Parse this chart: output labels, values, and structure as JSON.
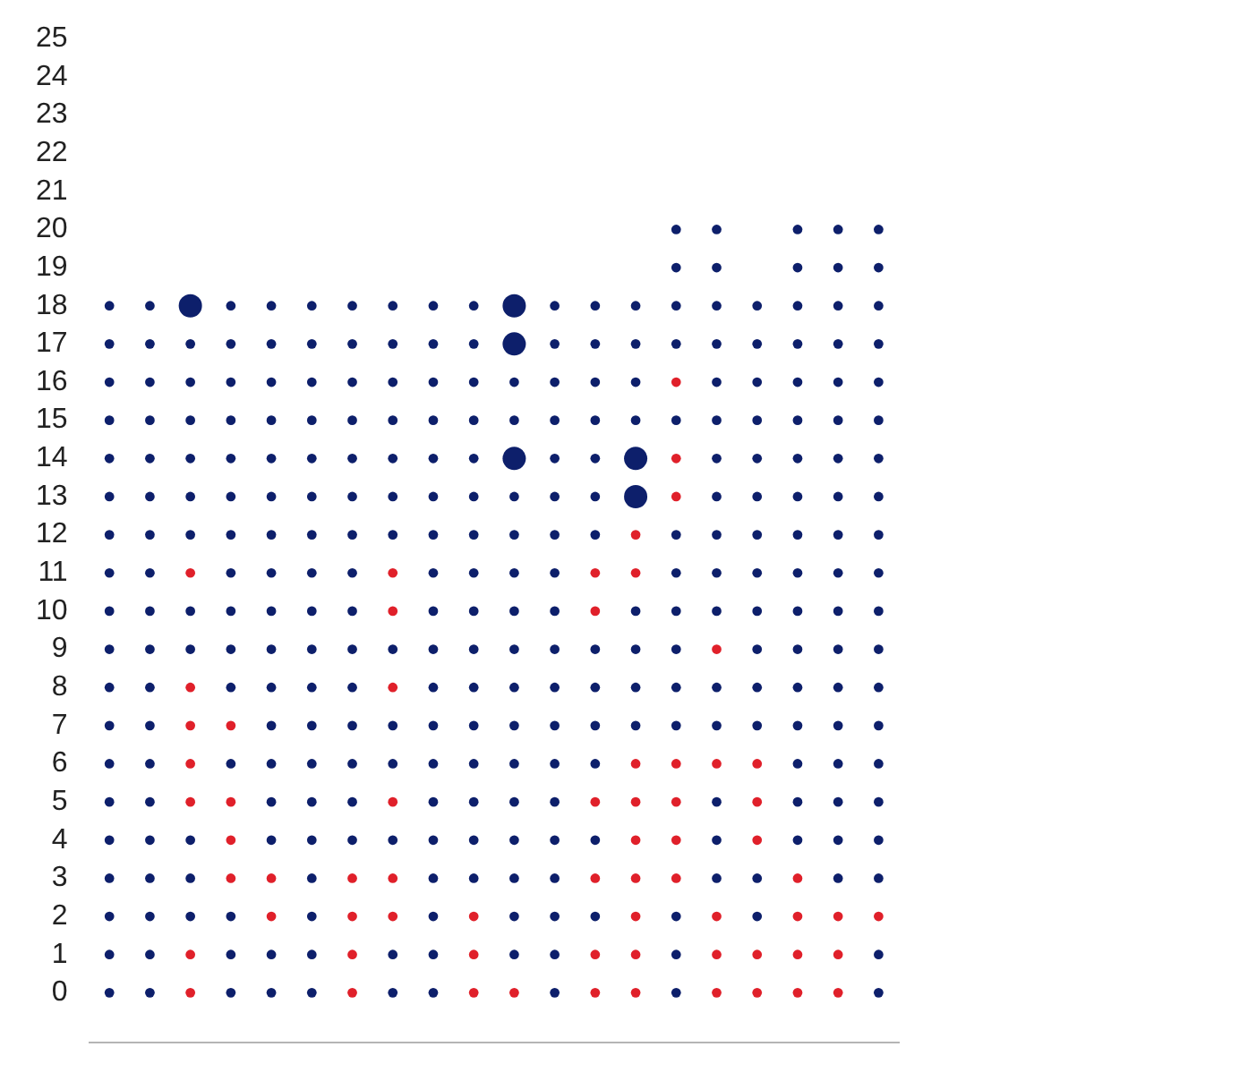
{
  "chart_data": {
    "type": "bubble",
    "categories": [
      null,
      null,
      null,
      null,
      null,
      null,
      null,
      null,
      null,
      null,
      null,
      null,
      null,
      null,
      null,
      null,
      null,
      null,
      null,
      null
    ],
    "ylim": [
      -1.3,
      25
    ],
    "yticks": [
      0,
      1,
      2,
      3,
      4,
      5,
      6,
      7,
      8,
      9,
      10,
      11,
      12,
      13,
      14,
      15,
      16,
      17,
      18,
      19,
      20,
      21,
      22,
      23,
      24,
      25
    ],
    "tick_labels": "y",
    "grid": false,
    "legend": false,
    "series": [
      {
        "values": [
          0,
          0,
          0,
          0,
          0,
          0,
          0,
          0,
          0,
          0,
          0,
          0,
          0,
          0,
          0,
          0,
          0,
          0,
          0,
          0
        ],
        "colors": [
          "#0d1f6b",
          "#0d1f6b",
          "#e0202a",
          "#0d1f6b",
          "#0d1f6b",
          "#0d1f6b",
          "#e0202a",
          "#0d1f6b",
          "#0d1f6b",
          "#e0202a",
          "#e0202a",
          "#0d1f6b",
          "#e0202a",
          "#e0202a",
          "#0d1f6b",
          "#e0202a",
          "#e0202a",
          "#e0202a",
          "#e0202a",
          "#0d1f6b"
        ],
        "sizes": [
          0.17,
          0.17,
          0.17,
          0.17,
          0.17,
          0.17,
          0.17,
          0.17,
          0.17,
          0.17,
          0.17,
          0.17,
          0.17,
          0.17,
          0.17,
          0.17,
          0.17,
          0.17,
          0.17,
          0.17
        ]
      },
      {
        "values": [
          1,
          1,
          1,
          1,
          1,
          1,
          1,
          1,
          1,
          1,
          1,
          1,
          1,
          1,
          1,
          1,
          1,
          1,
          1,
          1
        ],
        "colors": [
          "#0d1f6b",
          "#0d1f6b",
          "#e0202a",
          "#0d1f6b",
          "#0d1f6b",
          "#0d1f6b",
          "#e0202a",
          "#0d1f6b",
          "#0d1f6b",
          "#e0202a",
          "#0d1f6b",
          "#0d1f6b",
          "#e0202a",
          "#e0202a",
          "#0d1f6b",
          "#e0202a",
          "#e0202a",
          "#e0202a",
          "#e0202a",
          "#0d1f6b"
        ],
        "sizes": [
          0.17,
          0.17,
          0.17,
          0.17,
          0.17,
          0.17,
          0.17,
          0.17,
          0.17,
          0.17,
          0.17,
          0.17,
          0.17,
          0.17,
          0.17,
          0.17,
          0.17,
          0.17,
          0.17,
          0.17
        ]
      },
      {
        "values": [
          2,
          2,
          2,
          2,
          2,
          2,
          2,
          2,
          2,
          2,
          2,
          2,
          2,
          2,
          2,
          2,
          2,
          2,
          2,
          2
        ],
        "colors": [
          "#0d1f6b",
          "#0d1f6b",
          "#0d1f6b",
          "#0d1f6b",
          "#e0202a",
          "#0d1f6b",
          "#e0202a",
          "#e0202a",
          "#0d1f6b",
          "#e0202a",
          "#0d1f6b",
          "#0d1f6b",
          "#0d1f6b",
          "#e0202a",
          "#0d1f6b",
          "#e0202a",
          "#0d1f6b",
          "#e0202a",
          "#e0202a",
          "#e0202a"
        ],
        "sizes": [
          0.17,
          0.17,
          0.17,
          0.17,
          0.17,
          0.17,
          0.17,
          0.17,
          0.17,
          0.17,
          0.17,
          0.17,
          0.17,
          0.17,
          0.17,
          0.17,
          0.17,
          0.17,
          0.17,
          0.17
        ]
      },
      {
        "values": [
          3,
          3,
          3,
          3,
          3,
          3,
          3,
          3,
          3,
          3,
          3,
          3,
          3,
          3,
          3,
          3,
          3,
          3,
          3,
          3
        ],
        "colors": [
          "#0d1f6b",
          "#0d1f6b",
          "#0d1f6b",
          "#e0202a",
          "#e0202a",
          "#0d1f6b",
          "#e0202a",
          "#e0202a",
          "#0d1f6b",
          "#0d1f6b",
          "#0d1f6b",
          "#0d1f6b",
          "#e0202a",
          "#e0202a",
          "#e0202a",
          "#0d1f6b",
          "#0d1f6b",
          "#e0202a",
          "#0d1f6b",
          "#0d1f6b"
        ],
        "sizes": [
          0.17,
          0.17,
          0.17,
          0.17,
          0.17,
          0.17,
          0.17,
          0.17,
          0.17,
          0.17,
          0.17,
          0.17,
          0.17,
          0.17,
          0.17,
          0.17,
          0.17,
          0.17,
          0.17,
          0.17
        ]
      },
      {
        "values": [
          4,
          4,
          4,
          4,
          4,
          4,
          4,
          4,
          4,
          4,
          4,
          4,
          4,
          4,
          4,
          4,
          4,
          4,
          4,
          4
        ],
        "colors": [
          "#0d1f6b",
          "#0d1f6b",
          "#0d1f6b",
          "#e0202a",
          "#0d1f6b",
          "#0d1f6b",
          "#0d1f6b",
          "#0d1f6b",
          "#0d1f6b",
          "#0d1f6b",
          "#0d1f6b",
          "#0d1f6b",
          "#0d1f6b",
          "#e0202a",
          "#e0202a",
          "#0d1f6b",
          "#e0202a",
          "#0d1f6b",
          "#0d1f6b",
          "#0d1f6b"
        ],
        "sizes": [
          0.17,
          0.17,
          0.17,
          0.17,
          0.17,
          0.17,
          0.17,
          0.17,
          0.17,
          0.17,
          0.17,
          0.17,
          0.17,
          0.17,
          0.17,
          0.17,
          0.17,
          0.17,
          0.17,
          0.17
        ]
      },
      {
        "values": [
          5,
          5,
          5,
          5,
          5,
          5,
          5,
          5,
          5,
          5,
          5,
          5,
          5,
          5,
          5,
          5,
          5,
          5,
          5,
          5
        ],
        "colors": [
          "#0d1f6b",
          "#0d1f6b",
          "#e0202a",
          "#e0202a",
          "#0d1f6b",
          "#0d1f6b",
          "#0d1f6b",
          "#e0202a",
          "#0d1f6b",
          "#0d1f6b",
          "#0d1f6b",
          "#0d1f6b",
          "#e0202a",
          "#e0202a",
          "#e0202a",
          "#0d1f6b",
          "#e0202a",
          "#0d1f6b",
          "#0d1f6b",
          "#0d1f6b"
        ],
        "sizes": [
          0.17,
          0.17,
          0.17,
          0.17,
          0.17,
          0.17,
          0.17,
          0.17,
          0.17,
          0.17,
          0.17,
          0.17,
          0.17,
          0.17,
          0.17,
          0.17,
          0.17,
          0.17,
          0.17,
          0.17
        ]
      },
      {
        "values": [
          6,
          6,
          6,
          6,
          6,
          6,
          6,
          6,
          6,
          6,
          6,
          6,
          6,
          6,
          6,
          6,
          6,
          6,
          6,
          6
        ],
        "colors": [
          "#0d1f6b",
          "#0d1f6b",
          "#e0202a",
          "#0d1f6b",
          "#0d1f6b",
          "#0d1f6b",
          "#0d1f6b",
          "#0d1f6b",
          "#0d1f6b",
          "#0d1f6b",
          "#0d1f6b",
          "#0d1f6b",
          "#0d1f6b",
          "#e0202a",
          "#e0202a",
          "#e0202a",
          "#e0202a",
          "#0d1f6b",
          "#0d1f6b",
          "#0d1f6b"
        ],
        "sizes": [
          0.17,
          0.17,
          0.17,
          0.17,
          0.17,
          0.17,
          0.17,
          0.17,
          0.17,
          0.17,
          0.17,
          0.17,
          0.17,
          0.17,
          0.17,
          0.17,
          0.17,
          0.17,
          0.17,
          0.17
        ]
      },
      {
        "values": [
          7,
          7,
          7,
          7,
          7,
          7,
          7,
          7,
          7,
          7,
          7,
          7,
          7,
          7,
          7,
          7,
          7,
          7,
          7,
          7
        ],
        "colors": [
          "#0d1f6b",
          "#0d1f6b",
          "#e0202a",
          "#e0202a",
          "#0d1f6b",
          "#0d1f6b",
          "#0d1f6b",
          "#0d1f6b",
          "#0d1f6b",
          "#0d1f6b",
          "#0d1f6b",
          "#0d1f6b",
          "#0d1f6b",
          "#0d1f6b",
          "#0d1f6b",
          "#0d1f6b",
          "#0d1f6b",
          "#0d1f6b",
          "#0d1f6b",
          "#0d1f6b"
        ],
        "sizes": [
          0.17,
          0.17,
          0.17,
          0.17,
          0.17,
          0.17,
          0.17,
          0.17,
          0.17,
          0.17,
          0.17,
          0.17,
          0.17,
          0.17,
          0.17,
          0.17,
          0.17,
          0.17,
          0.17,
          0.17
        ]
      },
      {
        "values": [
          8,
          8,
          8,
          8,
          8,
          8,
          8,
          8,
          8,
          8,
          8,
          8,
          8,
          8,
          8,
          8,
          8,
          8,
          8,
          8
        ],
        "colors": [
          "#0d1f6b",
          "#0d1f6b",
          "#e0202a",
          "#0d1f6b",
          "#0d1f6b",
          "#0d1f6b",
          "#0d1f6b",
          "#e0202a",
          "#0d1f6b",
          "#0d1f6b",
          "#0d1f6b",
          "#0d1f6b",
          "#0d1f6b",
          "#0d1f6b",
          "#0d1f6b",
          "#0d1f6b",
          "#0d1f6b",
          "#0d1f6b",
          "#0d1f6b",
          "#0d1f6b"
        ],
        "sizes": [
          0.17,
          0.17,
          0.17,
          0.17,
          0.17,
          0.17,
          0.17,
          0.17,
          0.17,
          0.17,
          0.17,
          0.17,
          0.17,
          0.17,
          0.17,
          0.17,
          0.17,
          0.17,
          0.17,
          0.17
        ]
      },
      {
        "values": [
          9,
          9,
          9,
          9,
          9,
          9,
          9,
          9,
          9,
          9,
          9,
          9,
          9,
          9,
          9,
          9,
          9,
          9,
          9,
          9
        ],
        "colors": [
          "#0d1f6b",
          "#0d1f6b",
          "#0d1f6b",
          "#0d1f6b",
          "#0d1f6b",
          "#0d1f6b",
          "#0d1f6b",
          "#0d1f6b",
          "#0d1f6b",
          "#0d1f6b",
          "#0d1f6b",
          "#0d1f6b",
          "#0d1f6b",
          "#0d1f6b",
          "#0d1f6b",
          "#e0202a",
          "#0d1f6b",
          "#0d1f6b",
          "#0d1f6b",
          "#0d1f6b"
        ],
        "sizes": [
          0.17,
          0.17,
          0.17,
          0.17,
          0.17,
          0.17,
          0.17,
          0.17,
          0.17,
          0.17,
          0.17,
          0.17,
          0.17,
          0.17,
          0.17,
          0.17,
          0.17,
          0.17,
          0.17,
          0.17
        ]
      },
      {
        "values": [
          10,
          10,
          10,
          10,
          10,
          10,
          10,
          10,
          10,
          10,
          10,
          10,
          10,
          10,
          10,
          10,
          10,
          10,
          10,
          10
        ],
        "colors": [
          "#0d1f6b",
          "#0d1f6b",
          "#0d1f6b",
          "#0d1f6b",
          "#0d1f6b",
          "#0d1f6b",
          "#0d1f6b",
          "#e0202a",
          "#0d1f6b",
          "#0d1f6b",
          "#0d1f6b",
          "#0d1f6b",
          "#e0202a",
          "#0d1f6b",
          "#0d1f6b",
          "#0d1f6b",
          "#0d1f6b",
          "#0d1f6b",
          "#0d1f6b",
          "#0d1f6b"
        ],
        "sizes": [
          0.17,
          0.17,
          0.17,
          0.17,
          0.17,
          0.17,
          0.17,
          0.17,
          0.17,
          0.17,
          0.17,
          0.17,
          0.17,
          0.17,
          0.17,
          0.17,
          0.17,
          0.17,
          0.17,
          0.17
        ]
      },
      {
        "values": [
          11,
          11,
          11,
          11,
          11,
          11,
          11,
          11,
          11,
          11,
          11,
          11,
          11,
          11,
          11,
          11,
          11,
          11,
          11,
          11
        ],
        "colors": [
          "#0d1f6b",
          "#0d1f6b",
          "#e0202a",
          "#0d1f6b",
          "#0d1f6b",
          "#0d1f6b",
          "#0d1f6b",
          "#e0202a",
          "#0d1f6b",
          "#0d1f6b",
          "#0d1f6b",
          "#0d1f6b",
          "#e0202a",
          "#e0202a",
          "#0d1f6b",
          "#0d1f6b",
          "#0d1f6b",
          "#0d1f6b",
          "#0d1f6b",
          "#0d1f6b"
        ],
        "sizes": [
          0.17,
          0.17,
          0.17,
          0.17,
          0.17,
          0.17,
          0.17,
          0.17,
          0.17,
          0.17,
          0.17,
          0.17,
          0.17,
          0.17,
          0.17,
          0.17,
          0.17,
          0.17,
          0.17,
          0.17
        ]
      },
      {
        "values": [
          12,
          12,
          12,
          12,
          12,
          12,
          12,
          12,
          12,
          12,
          12,
          12,
          12,
          12,
          12,
          12,
          12,
          12,
          12,
          12
        ],
        "colors": [
          "#0d1f6b",
          "#0d1f6b",
          "#0d1f6b",
          "#0d1f6b",
          "#0d1f6b",
          "#0d1f6b",
          "#0d1f6b",
          "#0d1f6b",
          "#0d1f6b",
          "#0d1f6b",
          "#0d1f6b",
          "#0d1f6b",
          "#0d1f6b",
          "#e0202a",
          "#0d1f6b",
          "#0d1f6b",
          "#0d1f6b",
          "#0d1f6b",
          "#0d1f6b",
          "#0d1f6b"
        ],
        "sizes": [
          0.17,
          0.17,
          0.17,
          0.17,
          0.17,
          0.17,
          0.17,
          0.17,
          0.17,
          0.17,
          0.17,
          0.17,
          0.17,
          0.17,
          0.17,
          0.17,
          0.17,
          0.17,
          0.17,
          0.17
        ]
      },
      {
        "values": [
          13,
          13,
          13,
          13,
          13,
          13,
          13,
          13,
          13,
          13,
          13,
          13,
          13,
          13,
          13,
          13,
          13,
          13,
          13,
          13
        ],
        "colors": [
          "#0d1f6b",
          "#0d1f6b",
          "#0d1f6b",
          "#0d1f6b",
          "#0d1f6b",
          "#0d1f6b",
          "#0d1f6b",
          "#0d1f6b",
          "#0d1f6b",
          "#0d1f6b",
          "#0d1f6b",
          "#0d1f6b",
          "#0d1f6b",
          "#0d1f6b",
          "#e0202a",
          "#0d1f6b",
          "#0d1f6b",
          "#0d1f6b",
          "#0d1f6b",
          "#0d1f6b"
        ],
        "sizes": [
          0.17,
          0.17,
          0.17,
          0.17,
          0.17,
          0.17,
          0.17,
          0.17,
          0.17,
          0.17,
          0.17,
          0.17,
          0.17,
          1,
          0.17,
          0.17,
          0.17,
          0.17,
          0.17,
          0.17
        ]
      },
      {
        "values": [
          14,
          14,
          14,
          14,
          14,
          14,
          14,
          14,
          14,
          14,
          14,
          14,
          14,
          14,
          14,
          14,
          14,
          14,
          14,
          14
        ],
        "colors": [
          "#0d1f6b",
          "#0d1f6b",
          "#0d1f6b",
          "#0d1f6b",
          "#0d1f6b",
          "#0d1f6b",
          "#0d1f6b",
          "#0d1f6b",
          "#0d1f6b",
          "#0d1f6b",
          "#0d1f6b",
          "#0d1f6b",
          "#0d1f6b",
          "#0d1f6b",
          "#e0202a",
          "#0d1f6b",
          "#0d1f6b",
          "#0d1f6b",
          "#0d1f6b",
          "#0d1f6b"
        ],
        "sizes": [
          0.17,
          0.17,
          0.17,
          0.17,
          0.17,
          0.17,
          0.17,
          0.17,
          0.17,
          0.17,
          1,
          0.17,
          0.17,
          1,
          0.17,
          0.17,
          0.17,
          0.17,
          0.17,
          0.17
        ]
      },
      {
        "values": [
          15,
          15,
          15,
          15,
          15,
          15,
          15,
          15,
          15,
          15,
          15,
          15,
          15,
          15,
          15,
          15,
          15,
          15,
          15,
          15
        ],
        "colors": [
          "#0d1f6b",
          "#0d1f6b",
          "#0d1f6b",
          "#0d1f6b",
          "#0d1f6b",
          "#0d1f6b",
          "#0d1f6b",
          "#0d1f6b",
          "#0d1f6b",
          "#0d1f6b",
          "#0d1f6b",
          "#0d1f6b",
          "#0d1f6b",
          "#0d1f6b",
          "#0d1f6b",
          "#0d1f6b",
          "#0d1f6b",
          "#0d1f6b",
          "#0d1f6b",
          "#0d1f6b"
        ],
        "sizes": [
          0.17,
          0.17,
          0.17,
          0.17,
          0.17,
          0.17,
          0.17,
          0.17,
          0.17,
          0.17,
          0.17,
          0.17,
          0.17,
          0.17,
          0.17,
          0.17,
          0.17,
          0.17,
          0.17,
          0.17
        ]
      },
      {
        "values": [
          16,
          16,
          16,
          16,
          16,
          16,
          16,
          16,
          16,
          16,
          16,
          16,
          16,
          16,
          16,
          16,
          16,
          16,
          16,
          16
        ],
        "colors": [
          "#0d1f6b",
          "#0d1f6b",
          "#0d1f6b",
          "#0d1f6b",
          "#0d1f6b",
          "#0d1f6b",
          "#0d1f6b",
          "#0d1f6b",
          "#0d1f6b",
          "#0d1f6b",
          "#0d1f6b",
          "#0d1f6b",
          "#0d1f6b",
          "#0d1f6b",
          "#e0202a",
          "#0d1f6b",
          "#0d1f6b",
          "#0d1f6b",
          "#0d1f6b",
          "#0d1f6b"
        ],
        "sizes": [
          0.17,
          0.17,
          0.17,
          0.17,
          0.17,
          0.17,
          0.17,
          0.17,
          0.17,
          0.17,
          0.17,
          0.17,
          0.17,
          0.17,
          0.17,
          0.17,
          0.17,
          0.17,
          0.17,
          0.17
        ]
      },
      {
        "values": [
          17,
          17,
          17,
          17,
          17,
          17,
          17,
          17,
          17,
          17,
          17,
          17,
          17,
          17,
          17,
          17,
          17,
          17,
          17,
          17
        ],
        "colors": [
          "#0d1f6b",
          "#0d1f6b",
          "#0d1f6b",
          "#0d1f6b",
          "#0d1f6b",
          "#0d1f6b",
          "#0d1f6b",
          "#0d1f6b",
          "#0d1f6b",
          "#0d1f6b",
          "#0d1f6b",
          "#0d1f6b",
          "#0d1f6b",
          "#0d1f6b",
          "#0d1f6b",
          "#0d1f6b",
          "#0d1f6b",
          "#0d1f6b",
          "#0d1f6b",
          "#0d1f6b"
        ],
        "sizes": [
          0.17,
          0.17,
          0.17,
          0.17,
          0.17,
          0.17,
          0.17,
          0.17,
          0.17,
          0.17,
          1,
          0.17,
          0.17,
          0.17,
          0.17,
          0.17,
          0.17,
          0.17,
          0.17,
          0.17
        ]
      },
      {
        "values": [
          18,
          18,
          18,
          18,
          18,
          18,
          18,
          18,
          18,
          18,
          18,
          18,
          18,
          18,
          18,
          18,
          18,
          18,
          18,
          18
        ],
        "colors": [
          "#0d1f6b",
          "#0d1f6b",
          "#0d1f6b",
          "#0d1f6b",
          "#0d1f6b",
          "#0d1f6b",
          "#0d1f6b",
          "#0d1f6b",
          "#0d1f6b",
          "#0d1f6b",
          "#0d1f6b",
          "#0d1f6b",
          "#0d1f6b",
          "#0d1f6b",
          "#0d1f6b",
          "#0d1f6b",
          "#0d1f6b",
          "#0d1f6b",
          "#0d1f6b",
          "#0d1f6b"
        ],
        "sizes": [
          0.17,
          0.17,
          1,
          0.17,
          0.17,
          0.17,
          0.17,
          0.17,
          0.17,
          0.17,
          1,
          0.17,
          0.17,
          0.17,
          0.17,
          0.17,
          0.17,
          0.17,
          0.17,
          0.17
        ]
      },
      {
        "values": [
          null,
          null,
          null,
          null,
          null,
          null,
          null,
          null,
          null,
          null,
          null,
          null,
          null,
          null,
          19,
          19,
          null,
          19,
          19,
          19
        ],
        "colors": [
          null,
          null,
          null,
          null,
          null,
          null,
          null,
          null,
          null,
          null,
          null,
          null,
          null,
          null,
          "#0d1f6b",
          "#0d1f6b",
          null,
          "#0d1f6b",
          "#0d1f6b",
          "#0d1f6b"
        ],
        "sizes": [
          null,
          null,
          null,
          null,
          null,
          null,
          null,
          null,
          null,
          null,
          null,
          null,
          null,
          null,
          0.17,
          0.17,
          null,
          0.17,
          0.17,
          0.17
        ]
      },
      {
        "values": [
          null,
          null,
          null,
          null,
          null,
          null,
          null,
          null,
          null,
          null,
          null,
          null,
          null,
          null,
          20,
          20,
          null,
          20,
          20,
          20
        ],
        "colors": [
          null,
          null,
          null,
          null,
          null,
          null,
          null,
          null,
          null,
          null,
          null,
          null,
          null,
          null,
          "#0d1f6b",
          "#0d1f6b",
          null,
          "#0d1f6b",
          "#0d1f6b",
          "#0d1f6b"
        ],
        "sizes": [
          null,
          null,
          null,
          null,
          null,
          null,
          null,
          null,
          null,
          null,
          null,
          null,
          null,
          null,
          0.17,
          0.17,
          null,
          0.17,
          0.17,
          0.17
        ]
      }
    ]
  }
}
